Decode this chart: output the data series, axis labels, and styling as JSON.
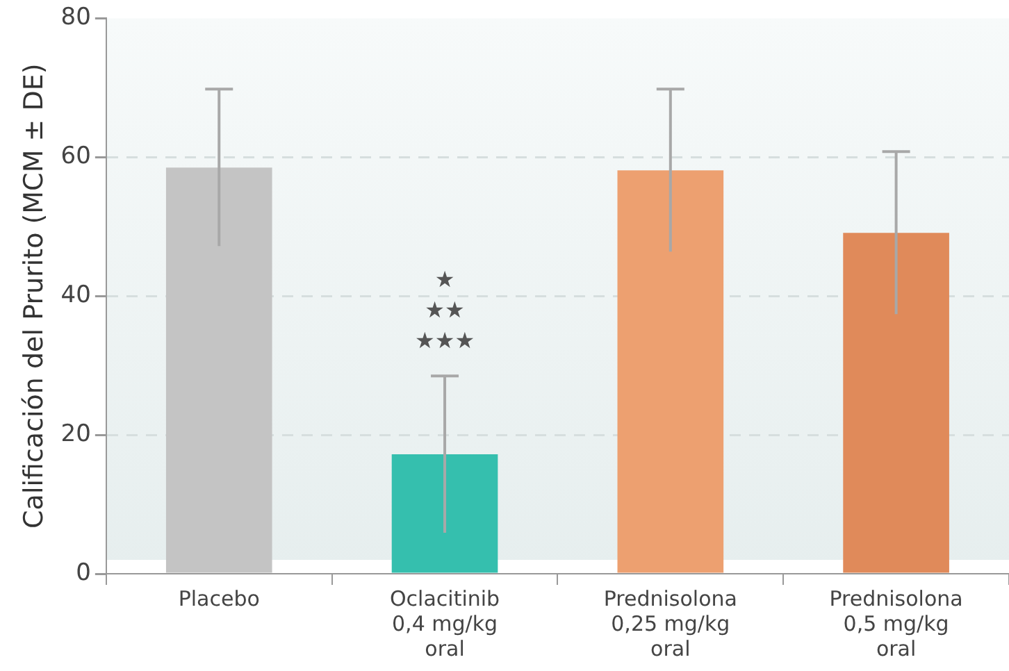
{
  "chart_data": {
    "type": "bar",
    "ylabel": "Calificación del Prurito (MCM ± DE)",
    "categories": [
      "Placebo",
      "Oclacitinib\n0,4 mg/kg\noral",
      "Prednisolona\n0,25 mg/kg\noral",
      "Prednisolona\n0,5 mg/kg\noral"
    ],
    "values": [
      58.5,
      17.2,
      58.1,
      49.1
    ],
    "errors": [
      11.3,
      11.3,
      11.7,
      11.7
    ],
    "colors": [
      "#c4c4c4",
      "#35bfae",
      "#eda070",
      "#e08a5a"
    ],
    "ylim": [
      0,
      80
    ],
    "yticks": [
      0,
      20,
      40,
      60,
      80
    ],
    "grid": "y",
    "legend": false,
    "annotations": [
      "★",
      "★★",
      "★★★"
    ]
  }
}
